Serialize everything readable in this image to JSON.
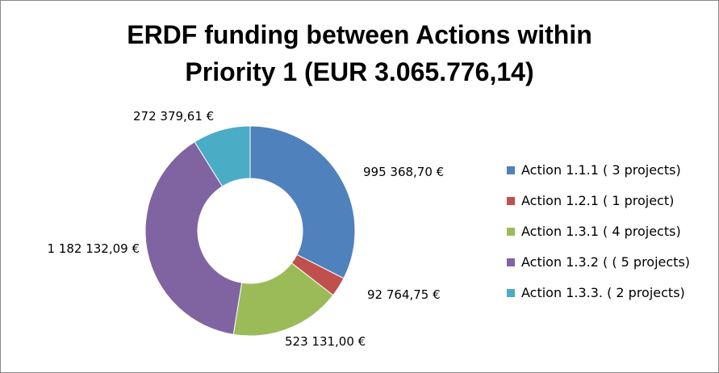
{
  "title": {
    "line1": "ERDF funding between Actions within",
    "line2": "Priority 1 (EUR 3.065.776,14)"
  },
  "chart_data": {
    "type": "pie",
    "variant": "doughnut",
    "title": "ERDF funding between Actions within Priority 1 (EUR 3.065.776,14)",
    "legend_position": "right",
    "series": [
      {
        "name": "Action 1.1.1 ( 3 projects)",
        "value": 995368.7,
        "label": "995 368,70 €",
        "color": "#4F81BD"
      },
      {
        "name": "Action 1.2.1 ( 1 project)",
        "value": 92764.75,
        "label": "92 764,75 €",
        "color": "#C0504D"
      },
      {
        "name": "Action 1.3.1 ( 4 projects)",
        "value": 523131.0,
        "label": "523 131,00 €",
        "color": "#9BBB59"
      },
      {
        "name": "Action 1.3.2 ( ( 5 projects)",
        "value": 1182132.09,
        "label": "1 182 132,09 €",
        "color": "#8064A2"
      },
      {
        "name": "Action 1.3.3. ( 2 projects)",
        "value": 272379.61,
        "label": "272 379,61 €",
        "color": "#4BACC6"
      }
    ]
  }
}
